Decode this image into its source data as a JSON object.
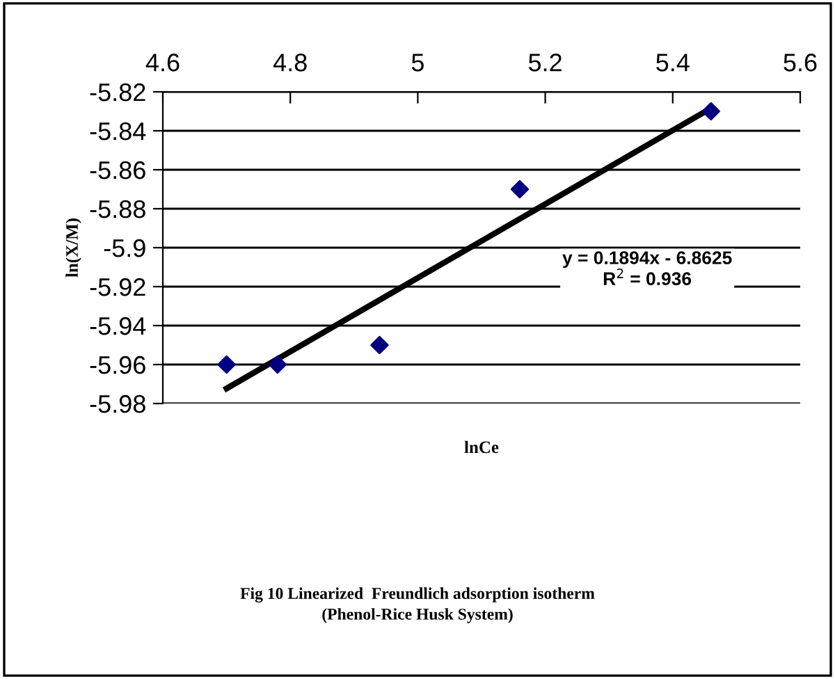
{
  "chart_data": {
    "type": "scatter",
    "xlabel": "lnCe",
    "ylabel": "ln(X/M)",
    "x": [
      4.7,
      4.78,
      4.94,
      5.16,
      5.46
    ],
    "series": [
      {
        "color": "#000080",
        "marker": "diamond",
        "values": [
          -5.96,
          -5.96,
          -5.95,
          -5.87,
          -5.83
        ]
      },
      {
        "type": "line",
        "color": "#000000",
        "marker": "none",
        "line_style": "solid",
        "x": [
          4.7,
          5.46
        ],
        "values": [
          -5.9723,
          -5.8284
        ]
      }
    ],
    "xlim": [
      4.6,
      5.6
    ],
    "xticks": [
      4.6,
      4.8,
      5,
      5.2,
      5.4,
      5.6
    ],
    "ylim": [
      -5.98,
      -5.82
    ],
    "yticks": [
      -5.98,
      -5.96,
      -5.94,
      -5.92,
      -5.9,
      -5.88,
      -5.86,
      -5.84,
      -5.82
    ],
    "grid": "y",
    "legend": false,
    "annotations": [
      "y = 0.1894x - 6.8625\nR$^{2}$ = 0.936",
      "Fig 10 Linearized  Freundlich adsorption isotherm\n(Phenol-Rice Husk System)"
    ]
  }
}
